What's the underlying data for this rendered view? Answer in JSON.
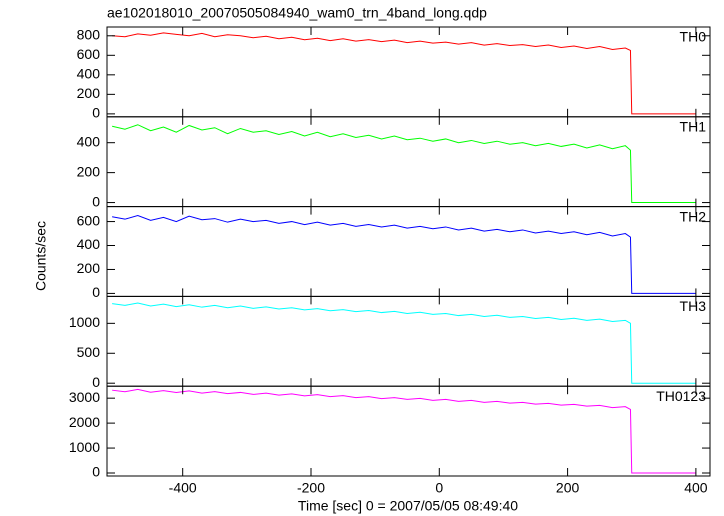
{
  "chart_data": [
    {
      "type": "line",
      "title": "ae102018010_20070505084940_wam0_trn_4band_long.qdp",
      "ylabel": "Counts/sec",
      "label": "TH0",
      "color": "#ff0000",
      "xlim": [
        -518,
        422
      ],
      "ylim": [
        -30,
        890
      ],
      "yticks": [
        0,
        200,
        400,
        600,
        800
      ],
      "x": [
        -510,
        -490,
        -470,
        -450,
        -430,
        -410,
        -390,
        -370,
        -350,
        -330,
        -310,
        -290,
        -270,
        -250,
        -230,
        -210,
        -190,
        -170,
        -150,
        -130,
        -110,
        -90,
        -70,
        -50,
        -30,
        -10,
        10,
        30,
        50,
        70,
        90,
        110,
        130,
        150,
        170,
        190,
        210,
        230,
        250,
        270,
        290,
        298,
        300,
        400
      ],
      "values": [
        800,
        790,
        820,
        805,
        830,
        815,
        800,
        825,
        790,
        810,
        800,
        780,
        795,
        770,
        785,
        760,
        775,
        750,
        770,
        745,
        760,
        740,
        755,
        730,
        745,
        725,
        735,
        715,
        730,
        705,
        720,
        700,
        710,
        690,
        705,
        680,
        695,
        670,
        690,
        660,
        675,
        650,
        0,
        0
      ]
    },
    {
      "type": "line",
      "label": "TH1",
      "color": "#00ff00",
      "xlim": [
        -518,
        422
      ],
      "ylim": [
        -27,
        573
      ],
      "yticks": [
        0,
        200,
        400
      ],
      "x": [
        -510,
        -490,
        -470,
        -450,
        -430,
        -410,
        -390,
        -370,
        -350,
        -330,
        -310,
        -290,
        -270,
        -250,
        -230,
        -210,
        -190,
        -170,
        -150,
        -130,
        -110,
        -90,
        -70,
        -50,
        -30,
        -10,
        10,
        30,
        50,
        70,
        90,
        110,
        130,
        150,
        170,
        190,
        210,
        230,
        250,
        270,
        290,
        298,
        300,
        400
      ],
      "values": [
        510,
        490,
        520,
        480,
        505,
        470,
        515,
        485,
        500,
        460,
        495,
        470,
        480,
        455,
        475,
        445,
        470,
        440,
        460,
        435,
        450,
        425,
        445,
        420,
        430,
        410,
        425,
        400,
        415,
        395,
        410,
        390,
        400,
        380,
        395,
        375,
        390,
        365,
        385,
        360,
        380,
        350,
        0,
        0
      ]
    },
    {
      "type": "line",
      "label": "TH2",
      "color": "#0000ff",
      "xlim": [
        -518,
        422
      ],
      "ylim": [
        -25,
        725
      ],
      "yticks": [
        0,
        200,
        400,
        600
      ],
      "x": [
        -510,
        -490,
        -470,
        -450,
        -430,
        -410,
        -390,
        -370,
        -350,
        -330,
        -310,
        -290,
        -270,
        -250,
        -230,
        -210,
        -190,
        -170,
        -150,
        -130,
        -110,
        -90,
        -70,
        -50,
        -30,
        -10,
        10,
        30,
        50,
        70,
        90,
        110,
        130,
        150,
        170,
        190,
        210,
        230,
        250,
        270,
        290,
        298,
        300,
        400
      ],
      "values": [
        640,
        620,
        650,
        610,
        635,
        600,
        645,
        615,
        625,
        595,
        620,
        600,
        610,
        585,
        600,
        575,
        595,
        570,
        585,
        560,
        575,
        555,
        570,
        545,
        560,
        540,
        555,
        530,
        545,
        520,
        535,
        515,
        530,
        505,
        520,
        500,
        515,
        490,
        510,
        480,
        500,
        470,
        0,
        0
      ]
    },
    {
      "type": "line",
      "label": "TH3",
      "color": "#00ffff",
      "xlim": [
        -518,
        422
      ],
      "ylim": [
        -50,
        1450
      ],
      "yticks": [
        0,
        500,
        1000
      ],
      "x": [
        -510,
        -490,
        -470,
        -450,
        -430,
        -410,
        -390,
        -370,
        -350,
        -330,
        -310,
        -290,
        -270,
        -250,
        -230,
        -210,
        -190,
        -170,
        -150,
        -130,
        -110,
        -90,
        -70,
        -50,
        -30,
        -10,
        10,
        30,
        50,
        70,
        90,
        110,
        130,
        150,
        170,
        190,
        210,
        230,
        250,
        270,
        290,
        298,
        300,
        400
      ],
      "values": [
        1330,
        1300,
        1340,
        1290,
        1320,
        1280,
        1310,
        1270,
        1300,
        1260,
        1290,
        1250,
        1275,
        1240,
        1260,
        1225,
        1245,
        1210,
        1230,
        1195,
        1215,
        1180,
        1200,
        1165,
        1185,
        1150,
        1165,
        1130,
        1150,
        1115,
        1135,
        1100,
        1115,
        1080,
        1100,
        1065,
        1085,
        1050,
        1070,
        1030,
        1050,
        1000,
        0,
        0
      ]
    },
    {
      "type": "line",
      "label": "TH0123",
      "color": "#ff00ff",
      "xlabel": "Time [sec] 0 = 2007/05/05 08:49:40",
      "xlim": [
        -518,
        422
      ],
      "ylim": [
        -120,
        3480
      ],
      "yticks": [
        0,
        1000,
        2000,
        3000
      ],
      "xticks": [
        -400,
        -200,
        0,
        200,
        400
      ],
      "x": [
        -510,
        -490,
        -470,
        -450,
        -430,
        -410,
        -390,
        -370,
        -350,
        -330,
        -310,
        -290,
        -270,
        -250,
        -230,
        -210,
        -190,
        -170,
        -150,
        -130,
        -110,
        -90,
        -70,
        -50,
        -30,
        -10,
        10,
        30,
        50,
        70,
        90,
        110,
        130,
        150,
        170,
        190,
        210,
        230,
        250,
        270,
        290,
        298,
        300,
        400
      ],
      "values": [
        3320,
        3260,
        3350,
        3240,
        3300,
        3230,
        3290,
        3200,
        3260,
        3180,
        3230,
        3150,
        3200,
        3120,
        3170,
        3090,
        3140,
        3060,
        3100,
        3020,
        3060,
        2980,
        3020,
        2950,
        2990,
        2910,
        2950,
        2870,
        2910,
        2830,
        2870,
        2800,
        2830,
        2760,
        2790,
        2720,
        2750,
        2680,
        2710,
        2620,
        2660,
        2550,
        0,
        0
      ]
    }
  ]
}
